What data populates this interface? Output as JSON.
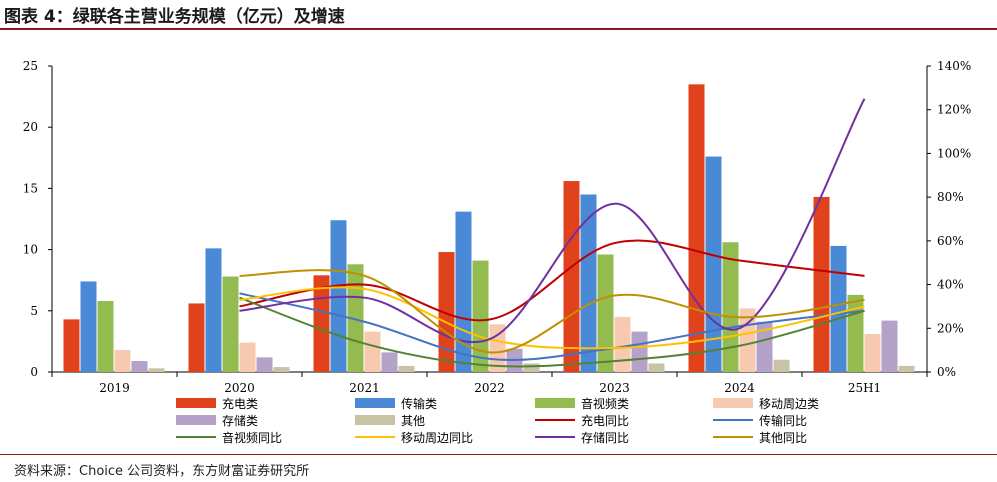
{
  "header": {
    "title": "图表 4：绿联各主营业务规模（亿元）及增速"
  },
  "footer": {
    "source": "资料来源：Choice 公司资料，东方财富证券研究所"
  },
  "chart_data": {
    "type": "bar",
    "categories": [
      "2019",
      "2020",
      "2021",
      "2022",
      "2023",
      "2024",
      "25H1"
    ],
    "y_left": {
      "ylim": [
        0,
        25
      ],
      "ticks": [
        0,
        5,
        10,
        15,
        20,
        25
      ]
    },
    "y_right": {
      "ylim": [
        0,
        140
      ],
      "ticks": [
        0,
        20,
        40,
        60,
        80,
        100,
        120,
        140
      ],
      "tick_labels": [
        "0%",
        "20%",
        "40%",
        "60%",
        "80%",
        "100%",
        "120%",
        "140%"
      ]
    },
    "bar_series": [
      {
        "name": "充电类",
        "color": "#E0421B",
        "values": [
          4.3,
          5.6,
          7.9,
          9.8,
          15.6,
          23.5,
          14.3
        ]
      },
      {
        "name": "传输类",
        "color": "#4A89D6",
        "values": [
          7.4,
          10.1,
          12.4,
          13.1,
          14.5,
          17.6,
          10.3
        ]
      },
      {
        "name": "音视频类",
        "color": "#93BB4F",
        "values": [
          5.8,
          7.8,
          8.8,
          9.1,
          9.6,
          10.6,
          6.3
        ]
      },
      {
        "name": "移动周边类",
        "color": "#F7CAB0",
        "values": [
          1.8,
          2.4,
          3.3,
          3.9,
          4.5,
          5.2,
          3.1
        ]
      },
      {
        "name": "存储类",
        "color": "#B4A2C9",
        "values": [
          0.9,
          1.2,
          1.6,
          1.9,
          3.3,
          4.1,
          4.2
        ]
      },
      {
        "name": "其他",
        "color": "#C8C3A4",
        "values": [
          0.3,
          0.4,
          0.5,
          0.7,
          0.7,
          1.0,
          0.5
        ]
      }
    ],
    "line_series": [
      {
        "name": "充电同比",
        "color": "#C00000",
        "values": [
          null,
          30,
          40,
          24,
          59,
          51,
          44
        ]
      },
      {
        "name": "传输同比",
        "color": "#4472C4",
        "values": [
          null,
          36,
          23,
          6,
          11,
          21,
          28
        ]
      },
      {
        "name": "音视频同比",
        "color": "#548235",
        "values": [
          null,
          34,
          13,
          3,
          5,
          12,
          28
        ]
      },
      {
        "name": "移动周边同比",
        "color": "#FFC000",
        "values": [
          null,
          33,
          38,
          15,
          11,
          17,
          30
        ]
      },
      {
        "name": "存储同比",
        "color": "#7030A0",
        "values": [
          null,
          28,
          34,
          15,
          77,
          20,
          125
        ]
      },
      {
        "name": "其他同比",
        "color": "#BF9000",
        "values": [
          null,
          44,
          44,
          9,
          35,
          25,
          33
        ]
      }
    ],
    "legend_position": "bottom"
  }
}
